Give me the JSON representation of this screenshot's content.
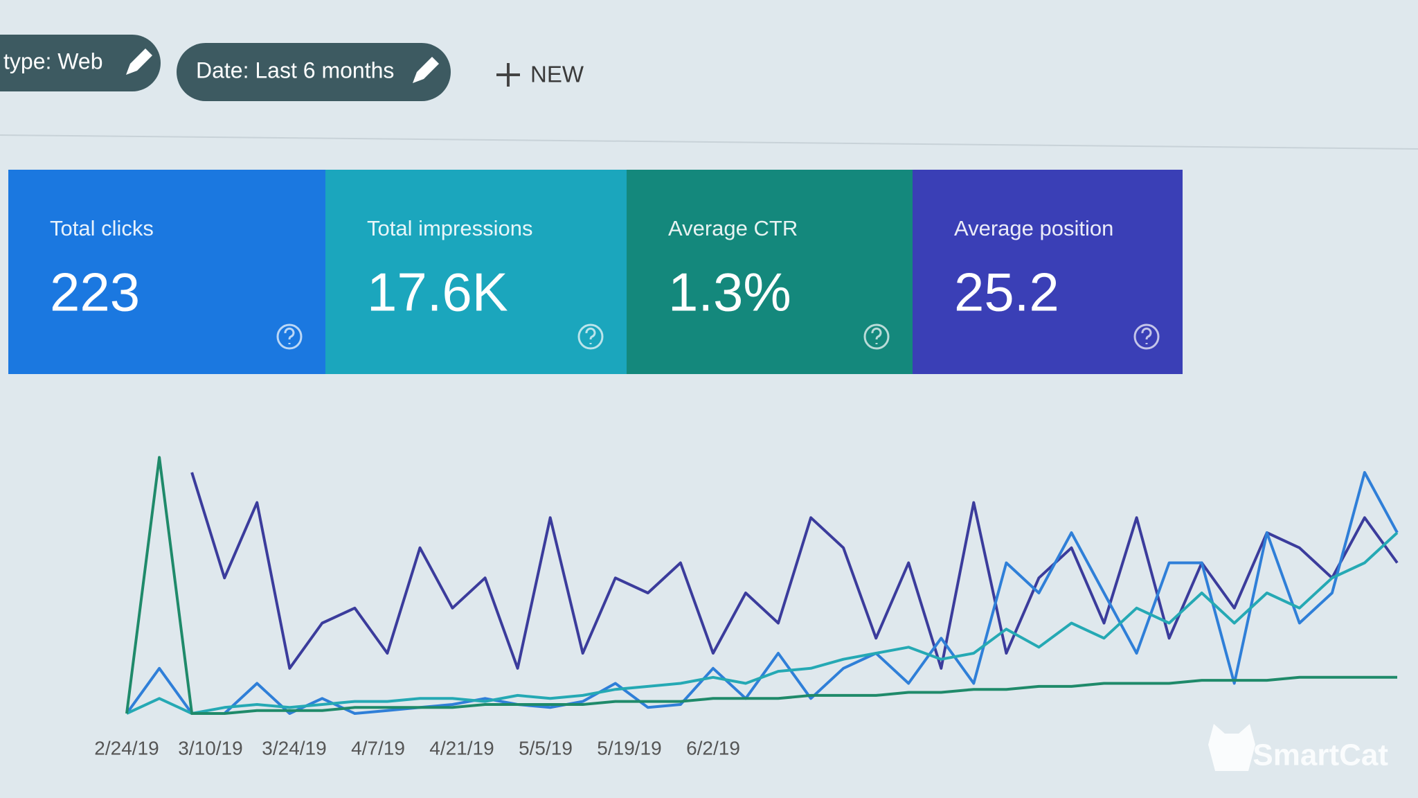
{
  "filters": [
    {
      "label": "type: Web"
    },
    {
      "label": "Date: Last 6 months"
    }
  ],
  "new_button": "NEW",
  "metrics": [
    {
      "title": "Total clicks",
      "value": "223",
      "color": "#1b78e0"
    },
    {
      "title": "Total impressions",
      "value": "17.6K",
      "color": "#1ba6bd"
    },
    {
      "title": "Average CTR",
      "value": "1.3%",
      "color": "#14887c"
    },
    {
      "title": "Average position",
      "value": "25.2",
      "color": "#3a3fb6"
    }
  ],
  "chart_data": {
    "type": "line",
    "x_labels": [
      "2/24/19",
      "3/10/19",
      "3/24/19",
      "4/7/19",
      "4/21/19",
      "5/5/19",
      "5/19/19",
      "6/2/19"
    ],
    "ylim": [
      0,
      100
    ],
    "series": [
      {
        "color": "#3b3c9c",
        "values": [
          null,
          null,
          80,
          45,
          70,
          15,
          30,
          35,
          20,
          55,
          35,
          45,
          15,
          65,
          20,
          45,
          40,
          50,
          20,
          40,
          30,
          65,
          55,
          25,
          50,
          15,
          70,
          20,
          45,
          55,
          30,
          65,
          25,
          50,
          35,
          60,
          55,
          45,
          65,
          50
        ]
      },
      {
        "color": "#2f7fd8",
        "values": [
          0,
          15,
          0,
          0,
          10,
          0,
          5,
          0,
          1,
          2,
          3,
          5,
          3,
          2,
          4,
          10,
          2,
          3,
          15,
          5,
          20,
          5,
          15,
          20,
          10,
          25,
          10,
          50,
          40,
          60,
          40,
          20,
          50,
          50,
          10,
          60,
          30,
          40,
          80,
          60
        ]
      },
      {
        "color": "#25a9b4",
        "values": [
          0,
          5,
          0,
          2,
          3,
          2,
          3,
          4,
          4,
          5,
          5,
          4,
          6,
          5,
          6,
          8,
          9,
          10,
          12,
          10,
          14,
          15,
          18,
          20,
          22,
          18,
          20,
          28,
          22,
          30,
          25,
          35,
          30,
          40,
          30,
          40,
          35,
          45,
          50,
          60
        ]
      },
      {
        "color": "#1f8a6a",
        "values": [
          0,
          85,
          0,
          0,
          1,
          1,
          1,
          2,
          2,
          2,
          2,
          3,
          3,
          3,
          3,
          4,
          4,
          4,
          5,
          5,
          5,
          6,
          6,
          6,
          7,
          7,
          8,
          8,
          9,
          9,
          10,
          10,
          10,
          11,
          11,
          11,
          12,
          12,
          12,
          12
        ]
      }
    ]
  },
  "watermark": "SmartCat"
}
